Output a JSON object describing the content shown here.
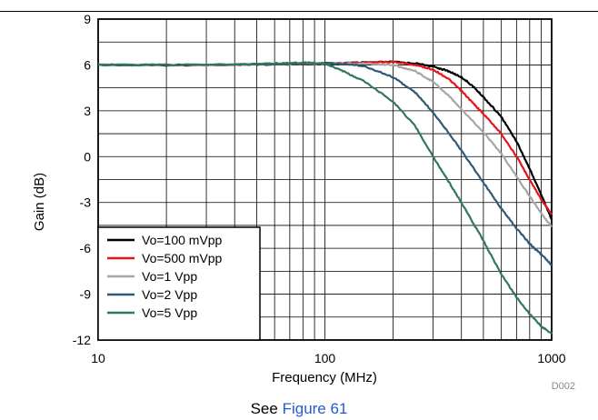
{
  "chart_data": {
    "type": "line",
    "xlabel": "Frequency (MHz)",
    "ylabel": "Gain (dB)",
    "xscale": "log",
    "xlim": [
      10,
      1000
    ],
    "ylim": [
      -12,
      9
    ],
    "x_ticks": [
      "10",
      "100",
      "1000"
    ],
    "y_ticks": [
      "9",
      "6",
      "3",
      "0",
      "-3",
      "-6",
      "-9",
      "-12"
    ],
    "grid": true,
    "legend_position": "bottom-left",
    "figure_id": "D002",
    "series": [
      {
        "name": "Vo=100 mVpp",
        "color": "#000000",
        "x": [
          10,
          30,
          60,
          100,
          150,
          200,
          250,
          300,
          350,
          400,
          450,
          500,
          600,
          700,
          800,
          900,
          1000
        ],
        "y": [
          6.0,
          6.0,
          6.05,
          6.1,
          6.15,
          6.2,
          6.1,
          5.9,
          5.6,
          5.2,
          4.6,
          3.9,
          2.6,
          1.0,
          -0.8,
          -2.5,
          -4.1
        ]
      },
      {
        "name": "Vo=500 mVpp",
        "color": "#e8141a",
        "x": [
          10,
          30,
          60,
          100,
          150,
          200,
          250,
          300,
          350,
          400,
          450,
          500,
          600,
          700,
          800,
          900,
          1000
        ],
        "y": [
          6.0,
          6.0,
          6.05,
          6.1,
          6.15,
          6.2,
          6.0,
          5.7,
          5.1,
          4.3,
          3.5,
          2.8,
          1.5,
          0.0,
          -1.5,
          -2.8,
          -3.8
        ]
      },
      {
        "name": "Vo=1 Vpp",
        "color": "#a6a6a6",
        "x": [
          10,
          30,
          60,
          100,
          150,
          200,
          250,
          300,
          350,
          400,
          500,
          600,
          700,
          800,
          900,
          1000
        ],
        "y": [
          6.0,
          6.0,
          6.05,
          6.1,
          6.1,
          6.0,
          5.6,
          4.9,
          4.0,
          3.1,
          1.6,
          0.2,
          -1.3,
          -2.6,
          -3.7,
          -4.6
        ]
      },
      {
        "name": "Vo=2 Vpp",
        "color": "#2e5a78",
        "x": [
          10,
          30,
          60,
          100,
          130,
          150,
          200,
          250,
          300,
          350,
          400,
          500,
          600,
          700,
          800,
          900,
          1000
        ],
        "y": [
          6.0,
          6.0,
          6.05,
          6.1,
          6.05,
          5.9,
          5.2,
          4.2,
          2.9,
          1.6,
          0.4,
          -1.7,
          -3.4,
          -4.7,
          -5.7,
          -6.4,
          -7.1
        ]
      },
      {
        "name": "Vo=5 Vpp",
        "color": "#31795a",
        "x": [
          10,
          30,
          60,
          80,
          100,
          120,
          150,
          200,
          250,
          300,
          350,
          400,
          500,
          600,
          700,
          800,
          900,
          1000
        ],
        "y": [
          6.0,
          6.0,
          6.1,
          6.15,
          6.1,
          5.6,
          4.9,
          3.6,
          2.0,
          0.0,
          -1.6,
          -3.0,
          -5.5,
          -7.7,
          -9.2,
          -10.3,
          -11.1,
          -11.6
        ]
      }
    ]
  },
  "caption": {
    "prefix": "See ",
    "link": "Figure 61"
  }
}
